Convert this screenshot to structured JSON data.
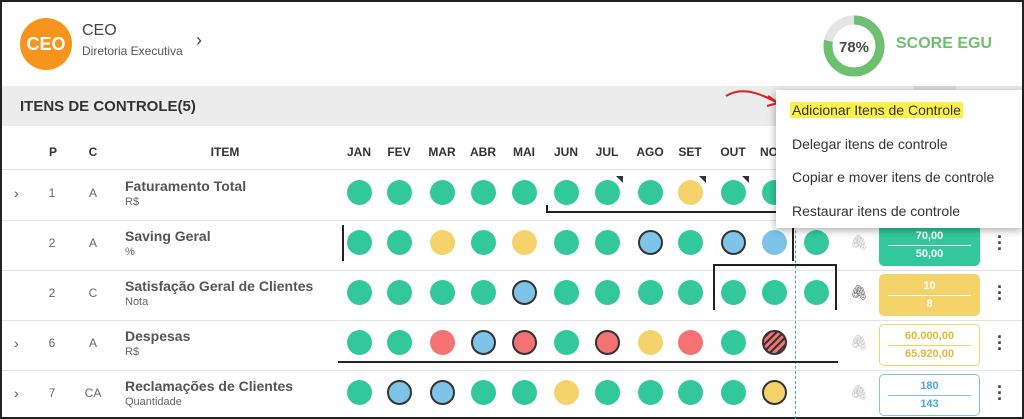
{
  "header": {
    "avatar_text": "CEO",
    "role_title": "CEO",
    "role_subtitle": "Diretoria Executiva",
    "chevron_icon": "chevron-right-icon",
    "score_value": "78%",
    "score_fraction": 0.78,
    "score_label": "SCORE EGU",
    "score_color": "#6cc070"
  },
  "section": {
    "title": "ITENS DE CONTROLE(5)"
  },
  "table": {
    "headers": {
      "p": "P",
      "c": "C",
      "item": "ITEM"
    },
    "months": [
      "JAN",
      "FEV",
      "MAR",
      "ABR",
      "MAI",
      "JUN",
      "JUL",
      "AGO",
      "SET",
      "OUT",
      "NO"
    ],
    "rows": [
      {
        "p": "1",
        "c": "A",
        "name": "Faturamento Total",
        "unit": "R$",
        "expandable": true,
        "v1": "",
        "v2": ""
      },
      {
        "p": "2",
        "c": "A",
        "name": "Saving Geral",
        "unit": "%",
        "expandable": false,
        "v1": "70,00",
        "v2": "50,00"
      },
      {
        "p": "2",
        "c": "C",
        "name": "Satisfação Geral de Clientes",
        "unit": "Nota",
        "expandable": false,
        "v1": "10",
        "v2": "8"
      },
      {
        "p": "6",
        "c": "A",
        "name": "Despesas",
        "unit": "R$",
        "expandable": true,
        "v1": "60.000,00",
        "v2": "65.920,00"
      },
      {
        "p": "7",
        "c": "CA",
        "name": "Reclamações de Clientes",
        "unit": "Quantidade",
        "expandable": true,
        "v1": "180",
        "v2": "143"
      }
    ]
  },
  "colors": {
    "green": "#33c89b",
    "yellow": "#f5d36b",
    "blue": "#7ec4e8",
    "red": "#f47272"
  },
  "menu": {
    "items": [
      "Adicionar Itens de Controle",
      "Delegar itens de controle",
      "Copiar e mover itens de controle",
      "Restaurar itens de controle"
    ]
  },
  "icons": {
    "expand": "chevron-right-icon",
    "attachment": "paperclip-icon",
    "more": "kebab-menu-icon",
    "annotation": "red-arrow-annotation"
  }
}
